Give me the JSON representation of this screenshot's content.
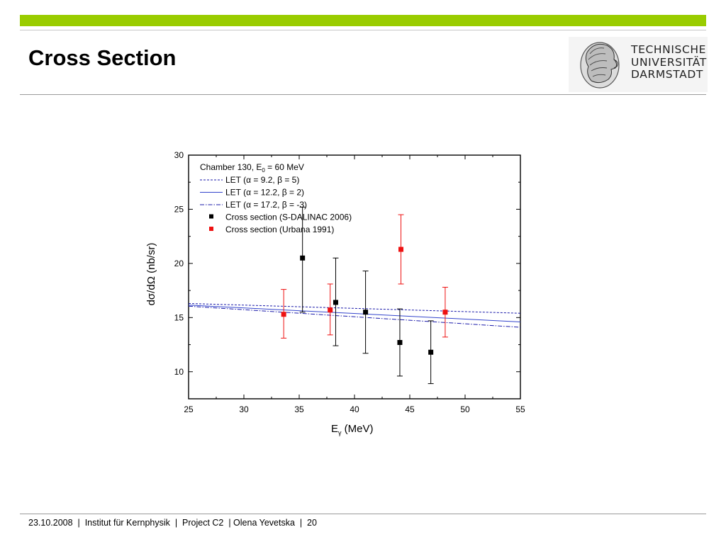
{
  "slide": {
    "title": "Cross Section",
    "footer": "23.10.2008  |  Institut für Kernphysik  |  Project C2  | Olena Yevetska  |  20",
    "accent_color": "#99cc00"
  },
  "logo": {
    "lines": [
      "TECHNISCHE",
      "UNIVERSITÄT",
      "DARMSTADT"
    ],
    "icon": "athena-head-seal"
  },
  "chart_data": {
    "type": "scatter",
    "annotation_prefix": "Chamber 130, E",
    "annotation_sub": "0",
    "annotation_suffix": " = 60 MeV",
    "xlabel_main": "E",
    "xlabel_sub": "γ",
    "xlabel_unit": " (MeV)",
    "ylabel": "dσ/dΩ (nb/sr)",
    "xlim": [
      25,
      55
    ],
    "ylim": [
      7.5,
      30
    ],
    "xticks": [
      25,
      30,
      35,
      40,
      45,
      50,
      55
    ],
    "yticks": [
      10,
      15,
      20,
      25,
      30
    ],
    "grid": false,
    "legend_position": "top-left",
    "lines": [
      {
        "name": "LET (α = 9.2, β = 5)",
        "style": "dash",
        "color": "#1a1aaa",
        "x": [
          25,
          55
        ],
        "y": [
          16.3,
          15.4
        ]
      },
      {
        "name": "LET (α = 12.2, β = 2)",
        "style": "solid",
        "color": "#3344cc",
        "x": [
          25,
          55
        ],
        "y": [
          16.15,
          14.6
        ]
      },
      {
        "name": "LET (α = 17.2, β = -3)",
        "style": "dashdot",
        "color": "#1a1aaa",
        "x": [
          25,
          55
        ],
        "y": [
          16.05,
          14.1
        ]
      }
    ],
    "series": [
      {
        "name": "Cross section (S-DALINAC 2006)",
        "color": "#000000",
        "points": [
          {
            "x": 35.3,
            "y": 20.5,
            "ylo": 15.5,
            "yhi": 25.2
          },
          {
            "x": 38.3,
            "y": 16.4,
            "ylo": 12.4,
            "yhi": 20.5
          },
          {
            "x": 41.0,
            "y": 15.5,
            "ylo": 11.7,
            "yhi": 19.3
          },
          {
            "x": 44.1,
            "y": 12.7,
            "ylo": 9.6,
            "yhi": 15.8
          },
          {
            "x": 46.9,
            "y": 11.8,
            "ylo": 8.9,
            "yhi": 14.7
          }
        ]
      },
      {
        "name": "Cross section (Urbana 1991)",
        "color": "#ee1111",
        "points": [
          {
            "x": 33.6,
            "y": 15.3,
            "ylo": 13.1,
            "yhi": 17.6
          },
          {
            "x": 37.8,
            "y": 15.7,
            "ylo": 13.4,
            "yhi": 18.1
          },
          {
            "x": 44.2,
            "y": 21.3,
            "ylo": 18.1,
            "yhi": 24.5
          },
          {
            "x": 48.2,
            "y": 15.5,
            "ylo": 13.2,
            "yhi": 17.8
          }
        ]
      }
    ]
  }
}
